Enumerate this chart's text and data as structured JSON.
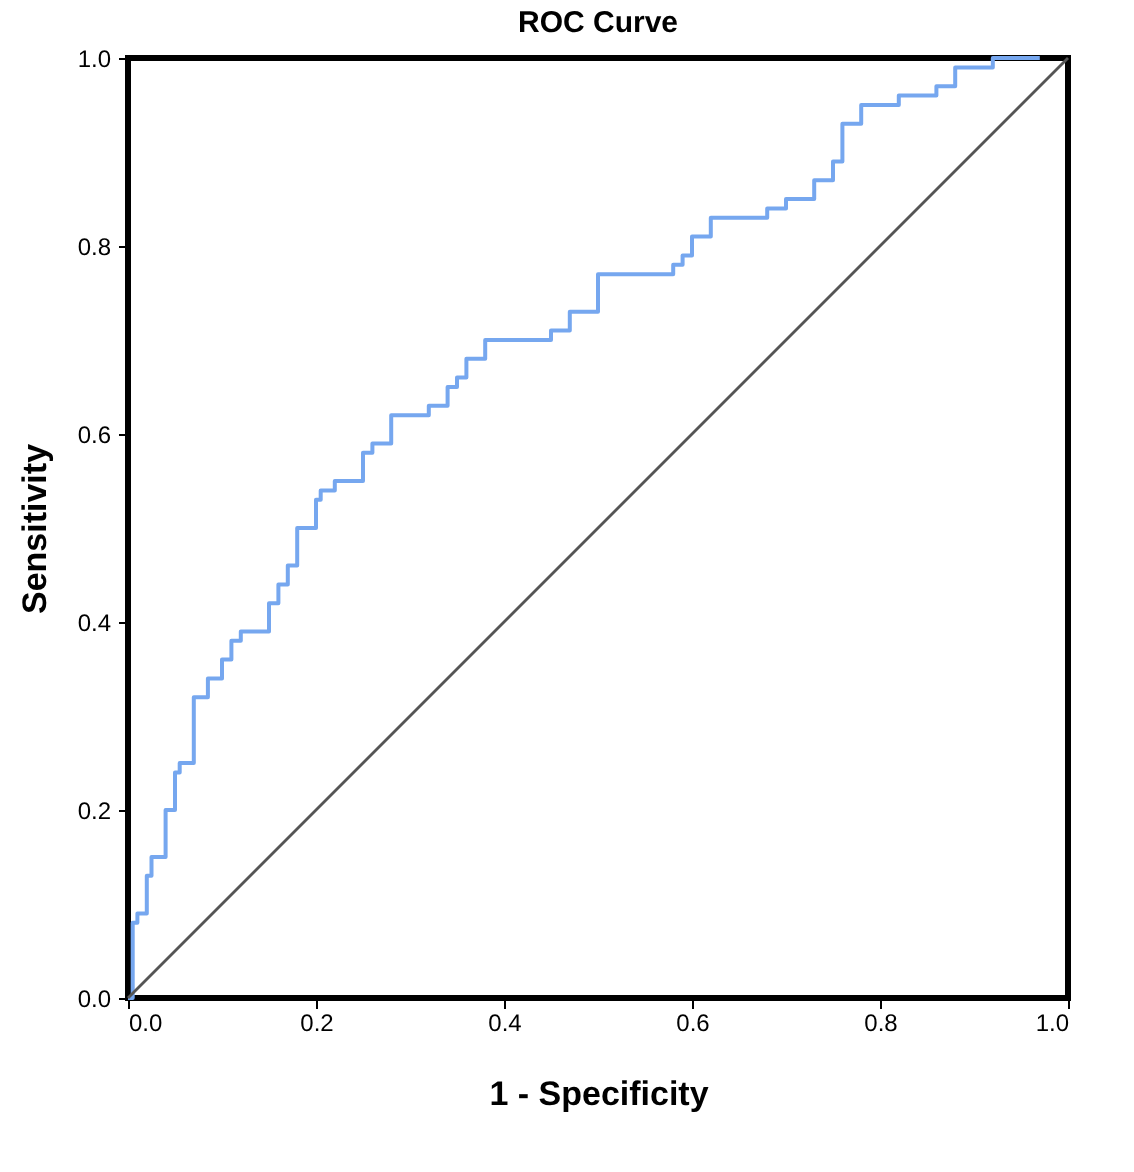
{
  "chart_data": {
    "type": "step",
    "title": "ROC Curve",
    "xlabel": "1 - Specificity",
    "ylabel": "Sensitivity",
    "series": [
      {
        "type": "step",
        "color": "#76a7ef",
        "x": [
          0,
          0.005,
          0.01,
          0.02,
          0.025,
          0.04,
          0.05,
          0.055,
          0.07,
          0.085,
          0.1,
          0.11,
          0.12,
          0.15,
          0.16,
          0.17,
          0.18,
          0.2,
          0.205,
          0.22,
          0.25,
          0.26,
          0.28,
          0.285,
          0.32,
          0.34,
          0.35,
          0.36,
          0.38,
          0.45,
          0.47,
          0.5,
          0.58,
          0.59,
          0.6,
          0.62,
          0.68,
          0.7,
          0.73,
          0.75,
          0.76,
          0.78,
          0.82,
          0.86,
          0.88,
          0.92,
          0.97
        ],
        "values": [
          0,
          0.08,
          0.09,
          0.13,
          0.15,
          0.2,
          0.24,
          0.25,
          0.32,
          0.34,
          0.36,
          0.38,
          0.39,
          0.42,
          0.44,
          0.46,
          0.5,
          0.53,
          0.54,
          0.55,
          0.58,
          0.59,
          0.62,
          0.62,
          0.63,
          0.65,
          0.66,
          0.68,
          0.7,
          0.71,
          0.73,
          0.77,
          0.78,
          0.79,
          0.81,
          0.83,
          0.84,
          0.85,
          0.87,
          0.89,
          0.93,
          0.95,
          0.96,
          0.97,
          0.99,
          1.0,
          1.0
        ]
      },
      {
        "type": "line",
        "color": "#555555",
        "x": [
          0,
          1
        ],
        "values": [
          0,
          1
        ]
      }
    ],
    "xlim": [
      0,
      1
    ],
    "ylim": [
      0,
      1
    ],
    "xticks": [
      {
        "value": 0,
        "label": "0.0"
      },
      0.2,
      0.4,
      0.6,
      0.8,
      {
        "value": 1,
        "label": "1.0"
      }
    ],
    "yticks": [
      {
        "value": 0,
        "label": "0.0"
      },
      0.2,
      0.4,
      0.6,
      0.8,
      {
        "value": 1,
        "label": "1.0"
      }
    ],
    "grid": false,
    "marker": "none"
  }
}
